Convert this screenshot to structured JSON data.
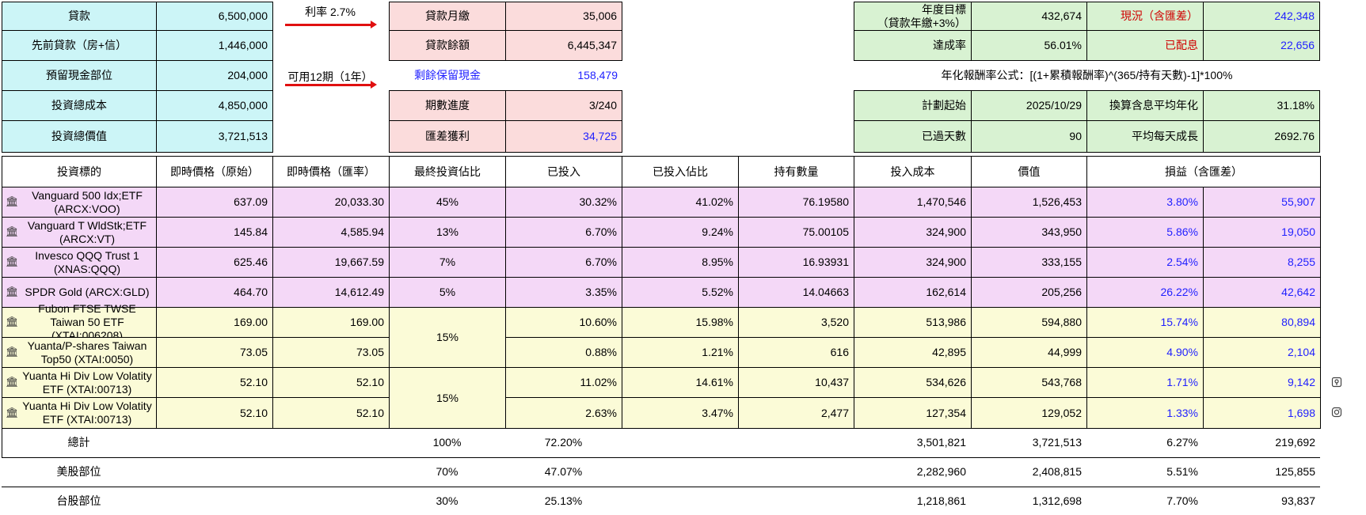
{
  "top_left": [
    {
      "label": "貸款",
      "value": "6,500,000"
    },
    {
      "label": "先前貸款（房+信）",
      "value": "1,446,000"
    },
    {
      "label": "預留現金部位",
      "value": "204,000"
    },
    {
      "label": "投資總成本",
      "value": "4,850,000"
    },
    {
      "label": "投資總價值",
      "value": "3,721,513"
    }
  ],
  "notes": {
    "interest_rate": "利率 2.7%",
    "usable_periods": "可用12期（1年）"
  },
  "top_mid": [
    {
      "label": "貸款月繳",
      "value": "35,006"
    },
    {
      "label": "貸款餘額",
      "value": "6,445,347"
    },
    {
      "label": "剩餘保留現金",
      "value": "158,479"
    },
    {
      "label": "期數進度",
      "value": "3/240"
    },
    {
      "label": "匯差獲利",
      "value": "34,725"
    }
  ],
  "top_right": {
    "annual_target_label_line1": "年度目標",
    "annual_target_label_line2": "（貸款年繳+3%）",
    "annual_target_value": "432,674",
    "current_label": "現況（含匯差）",
    "current_value": "242,348",
    "achieve_label": "達成率",
    "achieve_value": "56.01%",
    "dividend_label": "已配息",
    "dividend_value": "22,656",
    "formula": "年化報酬率公式：[(1+累積報酬率)^(365/持有天數)-1]*100%",
    "plan_start_label": "計劃起始",
    "plan_start_value": "2025/10/29",
    "annualized_label": "換算含息平均年化",
    "annualized_value": "31.18%",
    "days_label": "已過天數",
    "days_value": "90",
    "daily_growth_label": "平均每天成長",
    "daily_growth_value": "2692.76"
  },
  "table": {
    "headers": [
      "投資標的",
      "即時價格（原始）",
      "即時價格（匯率）",
      "最終投資佔比",
      "已投入",
      "已投入佔比",
      "持有數量",
      "投入成本",
      "價值",
      "損益（含匯差）"
    ],
    "rows": [
      {
        "name": "Vanguard 500 Idx;ETF (ARCX:VOO)",
        "price_raw": "637.09",
        "price_fx": "20,033.30",
        "target": "45%",
        "invested_pct": "30.32%",
        "invested_share": "41.02%",
        "qty": "76.19580",
        "cost": "1,470,546",
        "value": "1,526,453",
        "pl_pct": "3.80%",
        "pl": "55,907"
      },
      {
        "name": "Vanguard T WldStk;ETF (ARCX:VT)",
        "price_raw": "145.84",
        "price_fx": "4,585.94",
        "target": "13%",
        "invested_pct": "6.70%",
        "invested_share": "9.24%",
        "qty": "75.00105",
        "cost": "324,900",
        "value": "343,950",
        "pl_pct": "5.86%",
        "pl": "19,050"
      },
      {
        "name": "Invesco QQQ Trust 1 (XNAS:QQQ)",
        "price_raw": "625.46",
        "price_fx": "19,667.59",
        "target": "7%",
        "invested_pct": "6.70%",
        "invested_share": "8.95%",
        "qty": "16.93931",
        "cost": "324,900",
        "value": "333,155",
        "pl_pct": "2.54%",
        "pl": "8,255"
      },
      {
        "name": "SPDR Gold (ARCX:GLD)",
        "price_raw": "464.70",
        "price_fx": "14,612.49",
        "target": "5%",
        "invested_pct": "3.35%",
        "invested_share": "5.52%",
        "qty": "14.04663",
        "cost": "162,614",
        "value": "205,256",
        "pl_pct": "26.22%",
        "pl": "42,642"
      },
      {
        "name": "Fubon FTSE TWSE Taiwan 50 ETF (XTAI:006208)",
        "price_raw": "169.00",
        "price_fx": "169.00",
        "target": "",
        "invested_pct": "10.60%",
        "invested_share": "15.98%",
        "qty": "3,520",
        "cost": "513,986",
        "value": "594,880",
        "pl_pct": "15.74%",
        "pl": "80,894"
      },
      {
        "name": "Yuanta/P-shares Taiwan Top50 (XTAI:0050)",
        "price_raw": "73.05",
        "price_fx": "73.05",
        "target": "",
        "invested_pct": "0.88%",
        "invested_share": "1.21%",
        "qty": "616",
        "cost": "42,895",
        "value": "44,999",
        "pl_pct": "4.90%",
        "pl": "2,104"
      },
      {
        "name": "Yuanta Hi Div Low Volatity ETF (XTAI:00713)",
        "price_raw": "52.10",
        "price_fx": "52.10",
        "target": "",
        "invested_pct": "11.02%",
        "invested_share": "14.61%",
        "qty": "10,437",
        "cost": "534,626",
        "value": "543,768",
        "pl_pct": "1.71%",
        "pl": "9,142"
      },
      {
        "name": "Yuanta Hi Div Low Volatity ETF (XTAI:00713)",
        "price_raw": "52.10",
        "price_fx": "52.10",
        "target": "",
        "invested_pct": "2.63%",
        "invested_share": "3.47%",
        "qty": "2,477",
        "cost": "127,354",
        "value": "129,052",
        "pl_pct": "1.33%",
        "pl": "1,698"
      }
    ],
    "merged_targets": [
      "15%",
      "15%"
    ]
  },
  "summary": [
    {
      "label": "總計",
      "target": "100%",
      "invested_pct": "72.20%",
      "cost": "3,501,821",
      "value": "3,721,513",
      "pl_pct": "6.27%",
      "pl": "219,692"
    },
    {
      "label": "美股部位",
      "target": "70%",
      "invested_pct": "47.07%",
      "cost": "2,282,960",
      "value": "2,408,815",
      "pl_pct": "5.51%",
      "pl": "125,855"
    },
    {
      "label": "台股部位",
      "target": "30%",
      "invested_pct": "25.13%",
      "cost": "1,218,861",
      "value": "1,312,698",
      "pl_pct": "7.70%",
      "pl": "93,837"
    }
  ],
  "icons": {
    "row": "bank-icon",
    "side": [
      "pin-icon",
      "instagram-icon"
    ]
  },
  "colors": {
    "cyan": "#ccf5f7",
    "pink": "#fbdcdc",
    "green": "#d8f2d2",
    "lavender": "#f4d8f7",
    "yellow": "#fbfbd7",
    "blue": "#1f1fff",
    "red": "#d00000"
  }
}
